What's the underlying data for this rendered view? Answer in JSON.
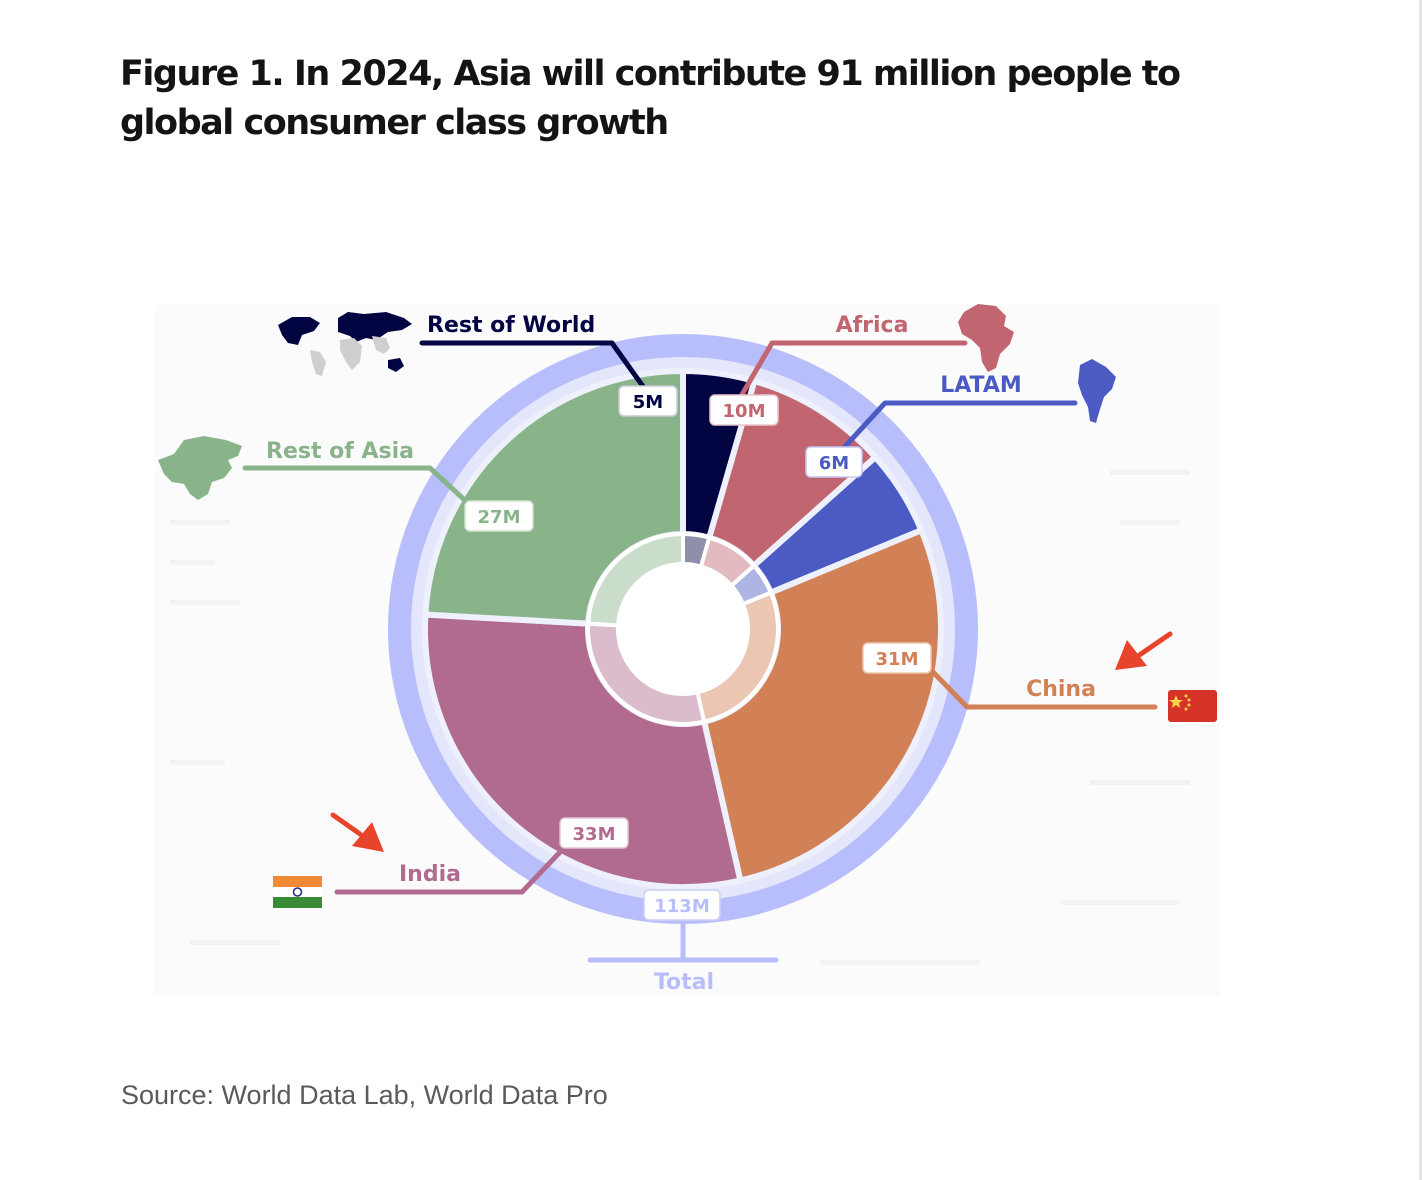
{
  "figure": {
    "title": "Figure 1. In 2024, Asia will contribute 91 million people to global consumer class growth",
    "source": "Source: World Data Lab, World Data Pro"
  },
  "chart_data": {
    "type": "pie",
    "title": "Figure 1. In 2024, Asia will contribute 91 million people to global consumer class growth",
    "unit": "million people",
    "categories": [
      "Rest of World",
      "Africa",
      "LATAM",
      "China",
      "India",
      "Rest of Asia"
    ],
    "values": [
      5,
      10,
      6,
      31,
      33,
      27
    ],
    "value_labels": [
      "5M",
      "10M",
      "6M",
      "31M",
      "33M",
      "27M"
    ],
    "colors": [
      "#030542",
      "#c16671",
      "#4b5bc3",
      "#d28055",
      "#b06b8e",
      "#89b48a"
    ],
    "total": {
      "label": "Total",
      "value": 113,
      "value_label": "113M",
      "color": "#b8befb"
    },
    "highlighted": [
      "China",
      "India"
    ],
    "region_icons": [
      "world-map-icon",
      "africa-map-icon",
      "south-america-map-icon",
      "china-flag-icon",
      "india-flag-icon",
      "asia-map-icon"
    ],
    "legend": "none"
  }
}
